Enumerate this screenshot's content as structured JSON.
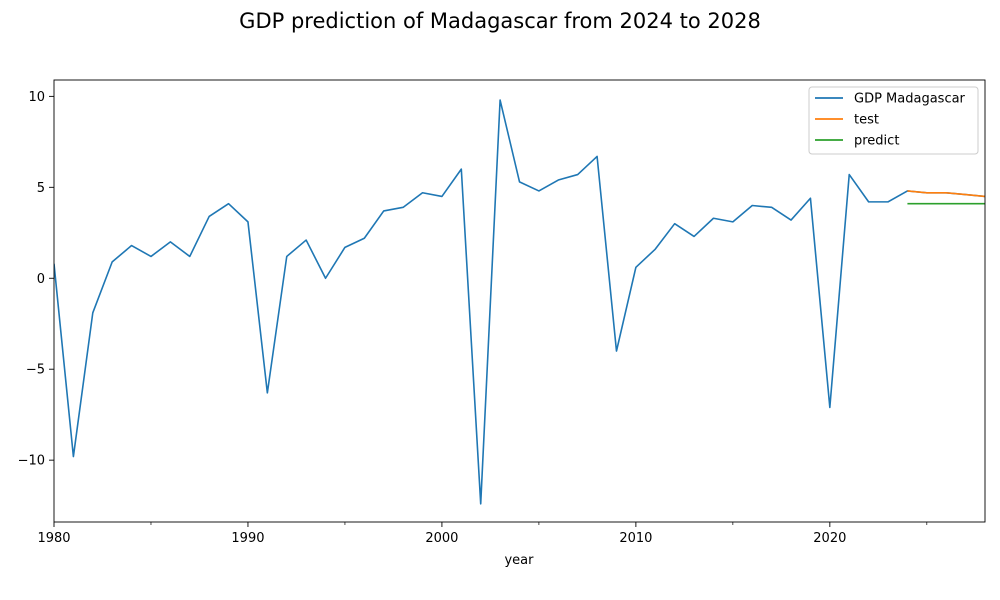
{
  "chart_data": {
    "type": "line",
    "title": "GDP prediction of Madagascar from 2024 to 2028",
    "xlabel": "year",
    "ylabel": "",
    "xlim": [
      1980,
      2028
    ],
    "ylim": [
      -13.4,
      10.9
    ],
    "x_ticks": [
      1980,
      1990,
      2000,
      2010,
      2020
    ],
    "x_minor_ticks": [
      1985,
      1995,
      2005,
      2015,
      2025
    ],
    "y_ticks": [
      -10,
      -5,
      0,
      5,
      10
    ],
    "grid": false,
    "legend_position": "top-right",
    "series": [
      {
        "name": "GDP Madagascar",
        "color": "#1f77b4",
        "x": [
          1980,
          1981,
          1982,
          1983,
          1984,
          1985,
          1986,
          1987,
          1988,
          1989,
          1990,
          1991,
          1992,
          1993,
          1994,
          1995,
          1996,
          1997,
          1998,
          1999,
          2000,
          2001,
          2002,
          2003,
          2004,
          2005,
          2006,
          2007,
          2008,
          2009,
          2010,
          2011,
          2012,
          2013,
          2014,
          2015,
          2016,
          2017,
          2018,
          2019,
          2020,
          2021,
          2022,
          2023,
          2024,
          2025,
          2026,
          2027,
          2028
        ],
        "values": [
          0.8,
          -9.8,
          -1.9,
          0.9,
          1.8,
          1.2,
          2.0,
          1.2,
          3.4,
          4.1,
          3.1,
          -6.3,
          1.2,
          2.1,
          0.0,
          1.7,
          2.2,
          3.7,
          3.9,
          4.7,
          4.5,
          6.0,
          -12.4,
          9.8,
          5.3,
          4.8,
          5.4,
          5.7,
          6.7,
          -4.0,
          0.6,
          1.6,
          3.0,
          2.3,
          3.3,
          3.1,
          4.0,
          3.9,
          3.2,
          4.4,
          -7.1,
          5.7,
          4.2,
          4.2,
          4.8,
          4.7,
          4.7,
          4.6,
          4.5
        ]
      },
      {
        "name": "test",
        "color": "#ff7f0e",
        "x": [
          2024,
          2025,
          2026,
          2027,
          2028
        ],
        "values": [
          4.8,
          4.7,
          4.7,
          4.6,
          4.5
        ]
      },
      {
        "name": "predict",
        "color": "#2ca02c",
        "x": [
          2024,
          2025,
          2026,
          2027,
          2028
        ],
        "values": [
          4.1,
          4.1,
          4.1,
          4.1,
          4.1
        ]
      }
    ]
  }
}
